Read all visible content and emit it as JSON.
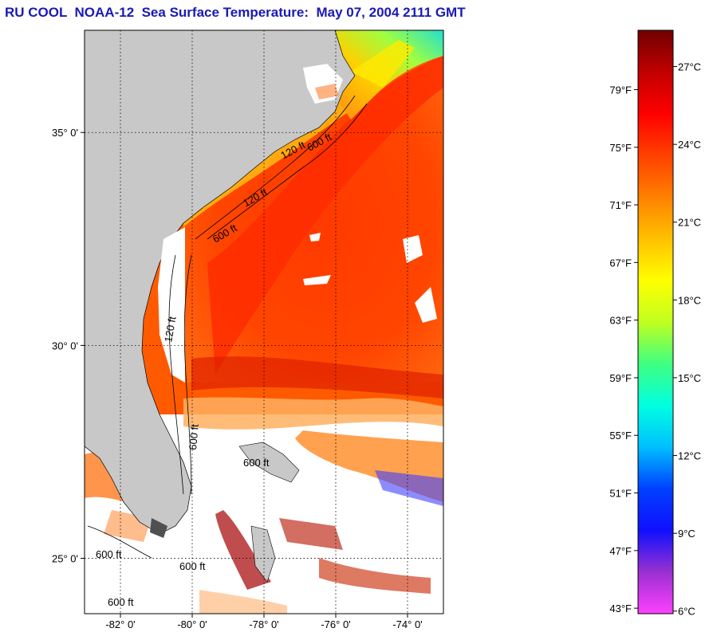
{
  "title": "RU COOL  NOAA-12  Sea Surface Temperature:  May 07, 2004 2111 GMT",
  "map": {
    "lon_range": [
      -83,
      -73
    ],
    "lat_range": [
      23.7,
      37.4
    ],
    "lat_ticks": [
      {
        "value": 35,
        "label": "35° 0'"
      },
      {
        "value": 30,
        "label": "30° 0'"
      },
      {
        "value": 25,
        "label": "25° 0'"
      }
    ],
    "lon_ticks": [
      {
        "value": -82,
        "label": "-82° 0'"
      },
      {
        "value": -80,
        "label": "-80° 0'"
      },
      {
        "value": -78,
        "label": "-78° 0'"
      },
      {
        "value": -76,
        "label": "-76° 0'"
      },
      {
        "value": -74,
        "label": "-74° 0'"
      }
    ],
    "isobath_labels": [
      "120 ft",
      "600 ft",
      "120 ft",
      "600 ft",
      "120 ft",
      "600 ft",
      "600 ft",
      "600 ft",
      "600 ft",
      "600 ft"
    ],
    "colors": {
      "land": "#c8c8c8",
      "cloud": "#ffffff",
      "frame": "#000000"
    }
  },
  "colorbar": {
    "fahrenheit_labels": [
      "79°F",
      "75°F",
      "71°F",
      "67°F",
      "63°F",
      "59°F",
      "55°F",
      "51°F",
      "47°F",
      "43°F"
    ],
    "celsius_labels": [
      "27°C",
      "24°C",
      "21°C",
      "18°C",
      "15°C",
      "12°C",
      "9°C",
      "6°C"
    ],
    "range_c": [
      5.9,
      28.4
    ],
    "stops": [
      "#ff40ff",
      "#9a30d0",
      "#1010ff",
      "#0040ff",
      "#00c0ff",
      "#00ffe0",
      "#40ff80",
      "#c0ff20",
      "#ffff00",
      "#ffc000",
      "#ff8000",
      "#ff4000",
      "#ff0000",
      "#c00000",
      "#700000"
    ]
  }
}
